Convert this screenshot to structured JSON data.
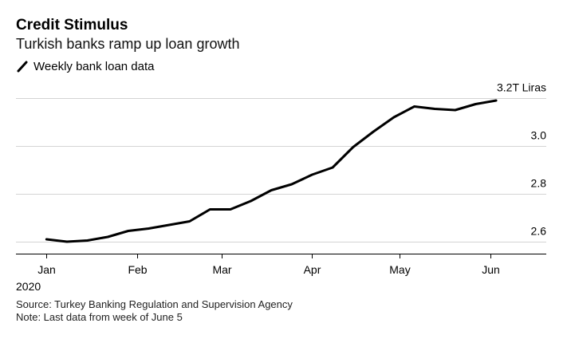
{
  "title": "Credit Stimulus",
  "subtitle": "Turkish banks ramp up loan growth",
  "legend_label": "Weekly bank loan data",
  "source": "Source: Turkey Banking Regulation and Supervision Agency",
  "note": "Note: Last data from week of June 5",
  "line_color": "#000000",
  "chart_data": {
    "type": "line",
    "title": "Credit Stimulus",
    "subtitle": "Turkish banks ramp up loan growth",
    "xlabel": "",
    "ylabel": "",
    "y_unit_label": "3.2T Liras",
    "ylim": [
      2.55,
      3.25
    ],
    "y_ticks": [
      2.6,
      2.8,
      3.0,
      3.2
    ],
    "y_tick_labels": [
      "2.6",
      "2.8",
      "3.0",
      "3.2T Liras"
    ],
    "x_ticks": [
      {
        "label": "Jan",
        "day": 1
      },
      {
        "label": "Feb",
        "day": 32
      },
      {
        "label": "Mar",
        "day": 61
      },
      {
        "label": "Apr",
        "day": 92
      },
      {
        "label": "May",
        "day": 122
      },
      {
        "label": "Jun",
        "day": 153
      }
    ],
    "x_year_label": "2020",
    "xlim_day": [
      -4,
      164
    ],
    "series": [
      {
        "name": "Weekly bank loan data",
        "x_day": [
          1,
          8,
          15,
          22,
          29,
          36,
          43,
          50,
          57,
          64,
          71,
          78,
          85,
          92,
          99,
          106,
          113,
          120,
          127,
          134,
          141,
          148,
          155
        ],
        "values": [
          2.61,
          2.6,
          2.605,
          2.62,
          2.645,
          2.655,
          2.67,
          2.685,
          2.735,
          2.735,
          2.77,
          2.815,
          2.84,
          2.88,
          2.91,
          2.995,
          3.06,
          3.12,
          3.165,
          3.155,
          3.15,
          3.175,
          3.19
        ]
      }
    ]
  }
}
